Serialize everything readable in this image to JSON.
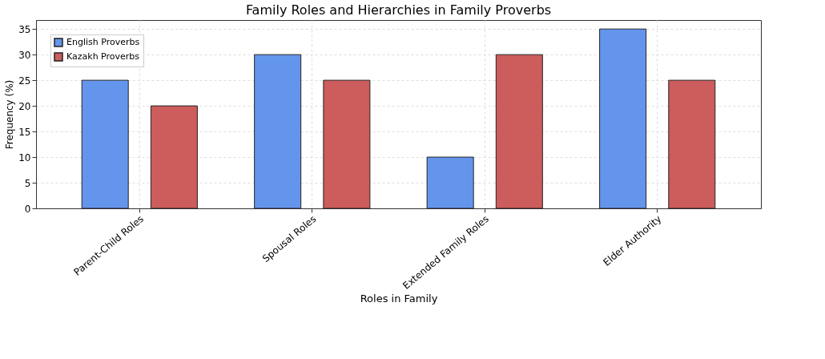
{
  "chart_data": {
    "type": "bar",
    "title": "Family Roles and Hierarchies in Family Proverbs",
    "xlabel": "Roles in Family",
    "ylabel": "Frequency (%)",
    "categories": [
      "Parent-Child Roles",
      "Spousal Roles",
      "Extended Family Roles",
      "Elder Authority"
    ],
    "series": [
      {
        "name": "English Proverbs",
        "color": "#6495ed",
        "values": [
          25,
          30,
          10,
          35
        ]
      },
      {
        "name": "Kazakh Proverbs",
        "color": "#cd5c5c",
        "values": [
          20,
          25,
          30,
          25
        ]
      }
    ],
    "ylim": [
      0,
      36.75
    ],
    "yticks": [
      0,
      5,
      10,
      15,
      20,
      25,
      30,
      35
    ],
    "grid": true,
    "legend": "top left"
  }
}
